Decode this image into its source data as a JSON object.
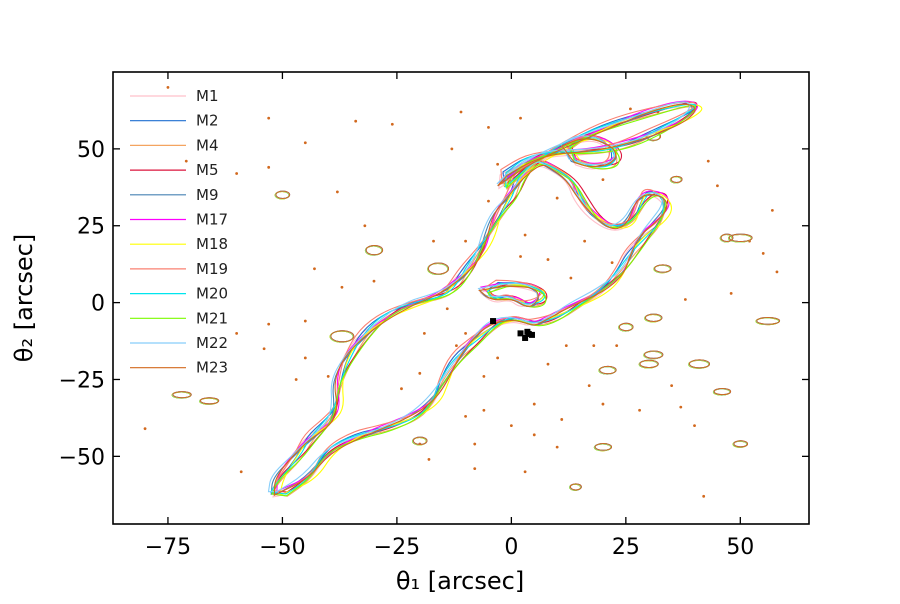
{
  "chart_data": {
    "type": "line",
    "title": "",
    "xlabel": "θ₁ [arcsec]",
    "ylabel": "θ₂ [arcsec]",
    "xlim": [
      -87,
      65
    ],
    "ylim": [
      -72,
      75
    ],
    "xticks": [
      {
        "value": -75,
        "label": "−75"
      },
      {
        "value": -50,
        "label": "−50"
      },
      {
        "value": -25,
        "label": "−25"
      },
      {
        "value": 0,
        "label": "0"
      },
      {
        "value": 25,
        "label": "25"
      },
      {
        "value": 50,
        "label": "50"
      }
    ],
    "yticks": [
      {
        "value": -50,
        "label": "−50"
      },
      {
        "value": -25,
        "label": "−25"
      },
      {
        "value": 0,
        "label": "0"
      },
      {
        "value": 25,
        "label": "25"
      },
      {
        "value": 50,
        "label": "50"
      }
    ],
    "grid": false,
    "legend_position": "top-left",
    "series": [
      {
        "name": "M1",
        "color": "#ffc0cb"
      },
      {
        "name": "M2",
        "color": "#1f6fd1"
      },
      {
        "name": "M4",
        "color": "#f4a460"
      },
      {
        "name": "M5",
        "color": "#dc143c"
      },
      {
        "name": "M9",
        "color": "#4682b4"
      },
      {
        "name": "M17",
        "color": "#ff00ff"
      },
      {
        "name": "M18",
        "color": "#ffff00"
      },
      {
        "name": "M19",
        "color": "#fa8072"
      },
      {
        "name": "M20",
        "color": "#00e5ee"
      },
      {
        "name": "M21",
        "color": "#7cfc00"
      },
      {
        "name": "M22",
        "color": "#87cefa"
      },
      {
        "name": "M23",
        "color": "#d2691e"
      }
    ],
    "critical_curves": {
      "main_region": {
        "xy": [
          [
            -50,
            -62
          ],
          [
            -44,
            -57
          ],
          [
            -40,
            -48
          ],
          [
            -33,
            -43
          ],
          [
            -28,
            -41
          ],
          [
            -21,
            -37
          ],
          [
            -17,
            -32
          ],
          [
            -15,
            -26
          ],
          [
            -12,
            -18
          ],
          [
            -8,
            -12
          ],
          [
            -4,
            -7
          ],
          [
            0,
            -5
          ],
          [
            3,
            -6
          ],
          [
            5,
            -7
          ],
          [
            9,
            -5
          ],
          [
            14,
            -1
          ],
          [
            20,
            4
          ],
          [
            24,
            10
          ],
          [
            26,
            16
          ],
          [
            29,
            22
          ],
          [
            32,
            26
          ],
          [
            34,
            31
          ],
          [
            33,
            35
          ],
          [
            30,
            36
          ],
          [
            28,
            33
          ],
          [
            26,
            26
          ],
          [
            22,
            24
          ],
          [
            18,
            28
          ],
          [
            15,
            34
          ],
          [
            13,
            40
          ],
          [
            9,
            44
          ],
          [
            6,
            46
          ],
          [
            2,
            41
          ],
          [
            0,
            35
          ],
          [
            -3,
            29
          ],
          [
            -5,
            22
          ],
          [
            -7,
            16
          ],
          [
            -10,
            10
          ],
          [
            -13,
            5
          ],
          [
            -16,
            2
          ],
          [
            -21,
            0
          ],
          [
            -27,
            -4
          ],
          [
            -32,
            -10
          ],
          [
            -36,
            -18
          ],
          [
            -38,
            -26
          ],
          [
            -38,
            -34
          ],
          [
            -40,
            -39
          ],
          [
            -44,
            -44
          ],
          [
            -47,
            -50
          ],
          [
            -51,
            -57
          ],
          [
            -52,
            -62
          ]
        ]
      },
      "arcs": [
        {
          "xy": [
            [
              -2,
              38
            ],
            [
              5,
              46
            ],
            [
              14,
              53
            ],
            [
              22,
              58
            ],
            [
              30,
              62
            ],
            [
              38,
              65
            ],
            [
              41,
              64
            ],
            [
              38,
              60
            ],
            [
              31,
              55
            ],
            [
              24,
              51
            ],
            [
              17,
              49
            ],
            [
              10,
              49
            ],
            [
              4,
              47
            ],
            [
              -1,
              42
            ]
          ]
        },
        {
          "xy": [
            [
              12,
              51
            ],
            [
              16,
              54
            ],
            [
              20,
              53
            ],
            [
              23,
              49
            ],
            [
              22,
              45
            ],
            [
              18,
              44
            ],
            [
              14,
              46
            ]
          ]
        },
        {
          "xy": [
            [
              -6,
              4
            ],
            [
              -4,
              1
            ],
            [
              0,
              2
            ],
            [
              3,
              -1
            ],
            [
              6,
              0
            ],
            [
              7,
              3
            ],
            [
              5,
              5
            ],
            [
              2,
              6
            ],
            [
              -2,
              6
            ]
          ]
        }
      ]
    },
    "halos": [
      {
        "x": -50,
        "y": 35,
        "rx": 1.5,
        "ry": 1.2
      },
      {
        "x": -30,
        "y": 17,
        "rx": 1.8,
        "ry": 1.5
      },
      {
        "x": -16,
        "y": 11,
        "rx": 2.2,
        "ry": 1.8
      },
      {
        "x": -37,
        "y": -11,
        "rx": 2.5,
        "ry": 1.8
      },
      {
        "x": -72,
        "y": -30,
        "rx": 2,
        "ry": 1
      },
      {
        "x": -66,
        "y": -32,
        "rx": 2,
        "ry": 1
      },
      {
        "x": 31,
        "y": 54,
        "rx": 1.5,
        "ry": 1.3
      },
      {
        "x": 36,
        "y": 40,
        "rx": 1.2,
        "ry": 1
      },
      {
        "x": 50,
        "y": 21,
        "rx": 2.5,
        "ry": 1.2
      },
      {
        "x": 47,
        "y": 21,
        "rx": 1.3,
        "ry": 1.2
      },
      {
        "x": 33,
        "y": 11,
        "rx": 1.8,
        "ry": 1.2
      },
      {
        "x": 56,
        "y": -6,
        "rx": 2.5,
        "ry": 1.1
      },
      {
        "x": 31,
        "y": -5,
        "rx": 1.8,
        "ry": 1.2
      },
      {
        "x": 25,
        "y": -8,
        "rx": 1.5,
        "ry": 1.2
      },
      {
        "x": 31,
        "y": -17,
        "rx": 2,
        "ry": 1.2
      },
      {
        "x": 41,
        "y": -20,
        "rx": 2.2,
        "ry": 1.3
      },
      {
        "x": 30,
        "y": -20,
        "rx": 2,
        "ry": 1.2
      },
      {
        "x": 21,
        "y": -22,
        "rx": 1.8,
        "ry": 1.2
      },
      {
        "x": 46,
        "y": -29,
        "rx": 1.8,
        "ry": 1
      },
      {
        "x": 20,
        "y": -47,
        "rx": 1.8,
        "ry": 1.1
      },
      {
        "x": 50,
        "y": -46,
        "rx": 1.5,
        "ry": 1
      },
      {
        "x": 14,
        "y": -60,
        "rx": 1.2,
        "ry": 1
      },
      {
        "x": -20,
        "y": -45,
        "rx": 1.5,
        "ry": 1.2
      }
    ],
    "dots": [
      [
        -54,
        -15
      ],
      [
        -45,
        -18
      ],
      [
        -40,
        -24
      ],
      [
        -24,
        -28
      ],
      [
        -10,
        20
      ],
      [
        -17,
        20
      ],
      [
        -30,
        7
      ],
      [
        -19,
        -10
      ],
      [
        -20,
        -23
      ],
      [
        -20,
        -46
      ],
      [
        -18,
        -51
      ],
      [
        -6,
        -35
      ],
      [
        -60,
        -10
      ],
      [
        -80,
        -41
      ],
      [
        -53,
        -7
      ],
      [
        -45,
        -6
      ],
      [
        -47,
        -25
      ],
      [
        -59,
        -55
      ],
      [
        -19,
        -34
      ],
      [
        -10,
        -37
      ],
      [
        -8,
        -54
      ],
      [
        -8,
        -46
      ],
      [
        0,
        -40
      ],
      [
        5,
        -43
      ],
      [
        10,
        -47
      ],
      [
        3,
        -55
      ],
      [
        5,
        -33
      ],
      [
        -6,
        -24
      ],
      [
        -37,
        5
      ],
      [
        -32,
        25
      ],
      [
        -43,
        11
      ],
      [
        -38,
        36
      ],
      [
        -45,
        52
      ],
      [
        -34,
        59
      ],
      [
        -26,
        58
      ],
      [
        -13,
        50
      ],
      [
        -11,
        62
      ],
      [
        -5,
        57
      ],
      [
        2,
        60
      ],
      [
        -3,
        45
      ],
      [
        10,
        34
      ],
      [
        16,
        20
      ],
      [
        24,
        25
      ],
      [
        13,
        8
      ],
      [
        22,
        13
      ],
      [
        3,
        22
      ],
      [
        -5,
        33
      ],
      [
        2,
        15
      ],
      [
        20,
        40
      ],
      [
        48,
        3
      ],
      [
        55,
        16
      ],
      [
        45,
        38
      ],
      [
        43,
        46
      ],
      [
        57,
        30
      ],
      [
        52,
        20
      ],
      [
        58,
        10
      ],
      [
        38,
        1
      ],
      [
        28,
        -35
      ],
      [
        40,
        -40
      ],
      [
        35,
        -27
      ],
      [
        37,
        -34
      ],
      [
        23,
        -14
      ],
      [
        17,
        -27
      ],
      [
        11,
        -38
      ],
      [
        20,
        -33
      ],
      [
        8,
        -20
      ],
      [
        12,
        -14
      ],
      [
        18,
        -14
      ],
      [
        -10,
        -10
      ],
      [
        -12,
        -14
      ],
      [
        -14,
        -2
      ],
      [
        -3,
        -18
      ],
      [
        8,
        14
      ],
      [
        32,
        62
      ],
      [
        26,
        63
      ],
      [
        42,
        -63
      ],
      [
        -53,
        44
      ],
      [
        -53,
        60
      ],
      [
        -60,
        42
      ],
      [
        -71,
        46
      ],
      [
        -75,
        70
      ]
    ],
    "image_markers": [
      {
        "x": -4,
        "y": -6
      },
      {
        "x": 2,
        "y": -10
      },
      {
        "x": 3.5,
        "y": -9.5
      },
      {
        "x": 4.5,
        "y": -10.5
      },
      {
        "x": 3,
        "y": -11.5
      },
      {
        "x": 3.8,
        "y": -10.2
      }
    ]
  }
}
